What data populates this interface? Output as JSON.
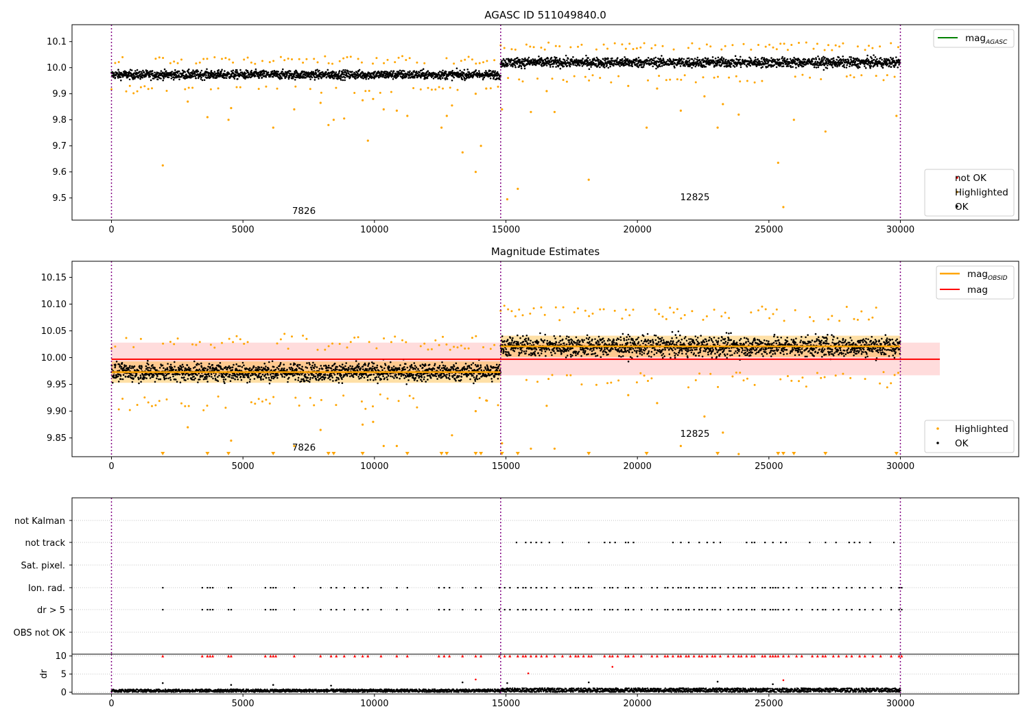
{
  "chart_data": [
    {
      "id": "top",
      "type": "scatter",
      "title": "AGASC ID 511049840.0",
      "xlabel": "",
      "ylabel": "",
      "xlim": [
        -1500,
        34500
      ],
      "ylim": [
        9.415,
        10.165
      ],
      "xticks": [
        0,
        5000,
        10000,
        15000,
        20000,
        25000,
        30000
      ],
      "yticks": [
        9.5,
        9.6,
        9.7,
        9.8,
        9.9,
        10.0,
        10.1
      ],
      "ytick_labels": [
        "9.5",
        "9.6",
        "9.7",
        "9.8",
        "9.9",
        "10.0",
        "10.1"
      ],
      "obsid_boundaries": [
        0,
        14800,
        30000
      ],
      "segments": [
        {
          "x_start": 0,
          "x_end": 14800,
          "mean": 9.973,
          "spread": 0.016
        },
        {
          "x_start": 14800,
          "x_end": 30000,
          "mean": 10.02,
          "spread": 0.018
        }
      ],
      "highlighted_outliers": [
        [
          1950,
          9.625
        ],
        [
          2900,
          9.87
        ],
        [
          3650,
          9.81
        ],
        [
          4450,
          9.8
        ],
        [
          4550,
          9.845
        ],
        [
          6150,
          9.77
        ],
        [
          6950,
          9.84
        ],
        [
          7950,
          9.865
        ],
        [
          8250,
          9.78
        ],
        [
          8450,
          9.8
        ],
        [
          8850,
          9.805
        ],
        [
          9550,
          9.875
        ],
        [
          9750,
          9.72
        ],
        [
          9950,
          9.88
        ],
        [
          10350,
          9.84
        ],
        [
          10850,
          9.835
        ],
        [
          11250,
          9.815
        ],
        [
          12550,
          9.77
        ],
        [
          12750,
          9.815
        ],
        [
          12950,
          9.855
        ],
        [
          13350,
          9.675
        ],
        [
          13850,
          9.6
        ],
        [
          13850,
          9.9
        ],
        [
          14050,
          9.7
        ],
        [
          14250,
          9.92
        ],
        [
          14850,
          9.84
        ],
        [
          15050,
          9.495
        ],
        [
          15450,
          9.535
        ],
        [
          15950,
          9.83
        ],
        [
          16550,
          9.91
        ],
        [
          16850,
          9.83
        ],
        [
          18150,
          9.57
        ],
        [
          19650,
          9.93
        ],
        [
          20350,
          9.77
        ],
        [
          20750,
          9.92
        ],
        [
          21650,
          9.835
        ],
        [
          22550,
          9.89
        ],
        [
          23050,
          9.77
        ],
        [
          23250,
          9.86
        ],
        [
          23850,
          9.82
        ],
        [
          25350,
          9.635
        ],
        [
          25550,
          9.465
        ],
        [
          25950,
          9.8
        ],
        [
          27150,
          9.755
        ],
        [
          29850,
          9.815
        ]
      ],
      "annotations": [
        {
          "text": "7826",
          "x": 7100,
          "y": 9.435
        },
        {
          "text": "12825",
          "x": 22400,
          "y": 9.49
        }
      ],
      "legend_lines": [
        {
          "label": "mag",
          "sub": "AGASC",
          "color": "#008000"
        }
      ],
      "legend_points": [
        {
          "label": "not OK",
          "color": "#ff0000"
        },
        {
          "label": "Highlighted",
          "color": "#ffa500"
        },
        {
          "label": "OK",
          "color": "#000000"
        }
      ]
    },
    {
      "id": "middle",
      "type": "scatter",
      "title": "Magnitude Estimates",
      "xlabel": "",
      "ylabel": "",
      "xlim": [
        -1500,
        34500
      ],
      "ylim": [
        9.815,
        10.18
      ],
      "xticks": [
        0,
        5000,
        10000,
        15000,
        20000,
        25000,
        30000
      ],
      "yticks": [
        9.85,
        9.9,
        9.95,
        10.0,
        10.05,
        10.1,
        10.15
      ],
      "ytick_labels": [
        "9.85",
        "9.90",
        "9.95",
        "10.00",
        "10.05",
        "10.10",
        "10.15"
      ],
      "obsid_boundaries": [
        0,
        14800,
        30000
      ],
      "mag": 9.997,
      "mag_band": [
        9.967,
        10.028
      ],
      "mag_band_x": [
        0,
        31500
      ],
      "mag_obsid": [
        {
          "x_start": 0,
          "x_end": 14800,
          "value": 9.973
        },
        {
          "x_start": 14800,
          "x_end": 30000,
          "value": 10.021
        }
      ],
      "offscale_markers_x": [
        1950,
        3650,
        4450,
        6150,
        8250,
        8450,
        9550,
        11250,
        12550,
        12750,
        13850,
        14050,
        14850,
        15450,
        18150,
        20350,
        23050,
        25350,
        25550,
        25950,
        27150,
        29850
      ],
      "highlighted_outliers": [
        [
          2900,
          9.87
        ],
        [
          4550,
          9.845
        ],
        [
          6950,
          9.835
        ],
        [
          7950,
          9.865
        ],
        [
          9550,
          9.875
        ],
        [
          9950,
          9.88
        ],
        [
          10350,
          9.835
        ],
        [
          10850,
          9.835
        ],
        [
          12950,
          9.855
        ],
        [
          13850,
          9.9
        ],
        [
          14250,
          9.92
        ],
        [
          14850,
          9.84
        ],
        [
          15950,
          9.83
        ],
        [
          16550,
          9.91
        ],
        [
          16850,
          9.83
        ],
        [
          19650,
          9.93
        ],
        [
          20750,
          9.915
        ],
        [
          21650,
          9.835
        ],
        [
          22550,
          9.89
        ],
        [
          23250,
          9.86
        ],
        [
          23850,
          9.82
        ]
      ],
      "annotations": [
        {
          "text": "7826",
          "x": 7100,
          "y": 9.835
        },
        {
          "text": "12825",
          "x": 22400,
          "y": 9.855
        }
      ],
      "legend_lines": [
        {
          "label": "mag",
          "sub": "OBSID",
          "color": "#ffa500"
        },
        {
          "label": "mag",
          "sub": "",
          "color": "#ff0000"
        }
      ],
      "legend_points": [
        {
          "label": "Highlighted",
          "color": "#ffa500"
        },
        {
          "label": "OK",
          "color": "#000000"
        }
      ]
    },
    {
      "id": "flags",
      "type": "scatter",
      "xlabel": "",
      "ylabel": "",
      "xlim": [
        -1500,
        34500
      ],
      "obsid_boundaries": [
        0,
        14800,
        30000
      ],
      "categories": [
        "not Kalman",
        "not track",
        "Sat. pixel.",
        "Ion. rad.",
        "dr > 5",
        "OBS not OK"
      ],
      "not_track_x": [
        15400,
        15750,
        15950,
        16150,
        16350,
        16650,
        17150,
        18150,
        18750,
        18950,
        19150,
        19550,
        19650,
        19850,
        21350,
        21650,
        21950,
        22350,
        22650,
        22900,
        23150,
        24150,
        24350,
        24450,
        24850,
        25150,
        25450,
        25650,
        26550,
        27150,
        27550,
        28050,
        28250,
        28450,
        28850,
        29750
      ],
      "ion_rad_x": [
        1950,
        3450,
        3650,
        3750,
        3850,
        4450,
        4550,
        5850,
        6050,
        6150,
        6250,
        6950,
        7950,
        8350,
        8550,
        8850,
        9250,
        9550,
        9750,
        10250,
        10850,
        11250,
        12450,
        12650,
        12850,
        13350,
        13850,
        14050,
        14750,
        14950,
        15150,
        15450,
        15650,
        15750,
        15950,
        16150,
        16350,
        16550,
        16850,
        17150,
        17450,
        17650,
        17750,
        17950,
        18150,
        18250,
        18750,
        18950,
        19050,
        19250,
        19550,
        19650,
        19850,
        20150,
        20550,
        20750,
        21050,
        21150,
        21350,
        21550,
        21650,
        21850,
        21950,
        22150,
        22350,
        22450,
        22650,
        22850,
        22950,
        23150,
        23450,
        23650,
        23850,
        23950,
        24150,
        24350,
        24450,
        24750,
        24850,
        25050,
        25150,
        25250,
        25350,
        25550,
        25750,
        26050,
        26250,
        26650,
        26850,
        27050,
        27150,
        27450,
        27650,
        27950,
        28150,
        28450,
        28650,
        28950,
        29250,
        29650,
        29950,
        30050
      ],
      "dr_gt_5_x": [
        1950,
        3450,
        3650,
        3750,
        3850,
        4450,
        4550,
        5850,
        6050,
        6150,
        6250,
        6950,
        7950,
        8350,
        8550,
        8850,
        9250,
        9550,
        9750,
        10250,
        10850,
        11250,
        12450,
        12650,
        12850,
        13350,
        13850,
        14050,
        14750,
        14950,
        15150,
        15450,
        15650,
        15750,
        15950,
        16150,
        16350,
        16550,
        16850,
        17150,
        17450,
        17650,
        17750,
        17950,
        18150,
        18250,
        18750,
        18950,
        19050,
        19250,
        19550,
        19650,
        19850,
        20150,
        20550,
        20750,
        21050,
        21150,
        21350,
        21550,
        21650,
        21850,
        21950,
        22150,
        22350,
        22450,
        22650,
        22850,
        22950,
        23150,
        23450,
        23650,
        23850,
        23950,
        24150,
        24350,
        24450,
        24750,
        24850,
        25050,
        25150,
        25250,
        25350,
        25550,
        25750,
        26050,
        26250,
        26650,
        26850,
        27050,
        27150,
        27450,
        27650,
        27950,
        28150,
        28450,
        28650,
        28950,
        29250,
        29650,
        29950,
        30050
      ]
    },
    {
      "id": "dr",
      "type": "scatter",
      "xlabel": "",
      "ylabel": "dr",
      "xlim": [
        -1500,
        34500
      ],
      "ylim": [
        -0.5,
        10.5
      ],
      "xticks": [
        0,
        5000,
        10000,
        15000,
        20000,
        25000,
        30000
      ],
      "yticks": [
        0,
        5,
        10
      ],
      "ytick_labels": [
        "0",
        "5",
        "10"
      ],
      "obsid_boundaries": [
        0,
        14800,
        30000
      ],
      "typical_dr": [
        0,
        1
      ],
      "clipped_value": 10,
      "outliers_black": [
        [
          1950,
          2.5
        ],
        [
          4550,
          2.0
        ],
        [
          6150,
          2.0
        ],
        [
          8350,
          1.8
        ],
        [
          13350,
          2.7
        ],
        [
          15050,
          2.5
        ],
        [
          18150,
          2.7
        ],
        [
          23050,
          2.9
        ],
        [
          25150,
          2.2
        ]
      ],
      "outliers_red": [
        [
          13850,
          3.5
        ],
        [
          15850,
          5.2
        ],
        [
          19050,
          7.0
        ],
        [
          25550,
          3.3
        ]
      ]
    }
  ]
}
